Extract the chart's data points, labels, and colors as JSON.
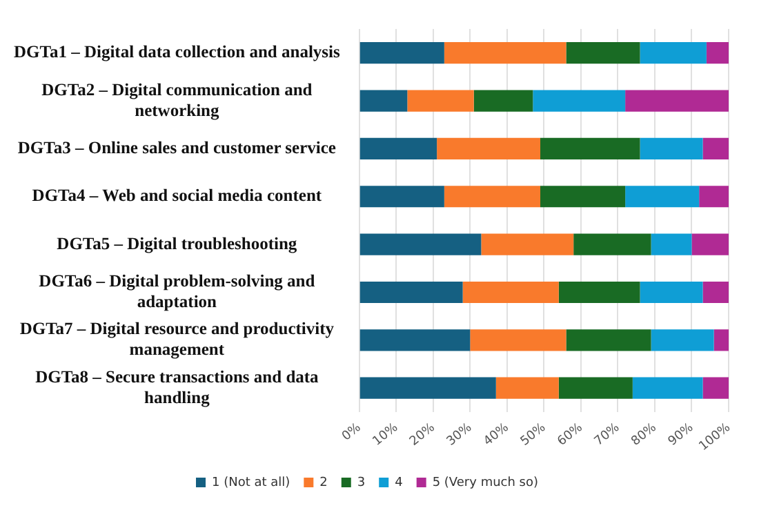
{
  "chart_data": {
    "type": "bar",
    "orientation": "horizontal",
    "stacked": true,
    "categories": [
      "DGTa1 – Digital data collection and analysis",
      "DGTa2 – Digital communication and networking",
      "DGTa3 – Online sales and customer service",
      "DGTa4 – Web and social media content",
      "DGTa5 – Digital troubleshooting",
      "DGTa6 – Digital problem-solving and adaptation",
      "DGTa7 – Digital resource and productivity management",
      "DGTa8 – Secure transactions and data handling"
    ],
    "series": [
      {
        "name": "1 (Not at all)",
        "color": "#156082",
        "values": [
          23,
          13,
          21,
          23,
          33,
          28,
          30,
          37
        ]
      },
      {
        "name": "2",
        "color": "#f97a2c",
        "values": [
          33,
          18,
          28,
          26,
          25,
          26,
          26,
          17
        ]
      },
      {
        "name": "3",
        "color": "#196b24",
        "values": [
          20,
          16,
          27,
          23,
          21,
          22,
          23,
          20
        ]
      },
      {
        "name": "4",
        "color": "#0f9ed5",
        "values": [
          18,
          25,
          17,
          20,
          11,
          17,
          17,
          19
        ]
      },
      {
        "name": "5 (Very much so)",
        "color": "#b02a94",
        "values": [
          6,
          28,
          7,
          8,
          10,
          7,
          4,
          7
        ]
      }
    ],
    "xlim": [
      0,
      100
    ],
    "xticks": [
      {
        "value": 0,
        "label": "0%"
      },
      {
        "value": 10,
        "label": "10%"
      },
      {
        "value": 20,
        "label": "20%"
      },
      {
        "value": 30,
        "label": "30%"
      },
      {
        "value": 40,
        "label": "40%"
      },
      {
        "value": 50,
        "label": "50%"
      },
      {
        "value": 60,
        "label": "60%"
      },
      {
        "value": 70,
        "label": "70%"
      },
      {
        "value": 80,
        "label": "80%"
      },
      {
        "value": 90,
        "label": "90%"
      },
      {
        "value": 100,
        "label": "100%"
      }
    ],
    "grid": "x",
    "legend": "bottom"
  }
}
